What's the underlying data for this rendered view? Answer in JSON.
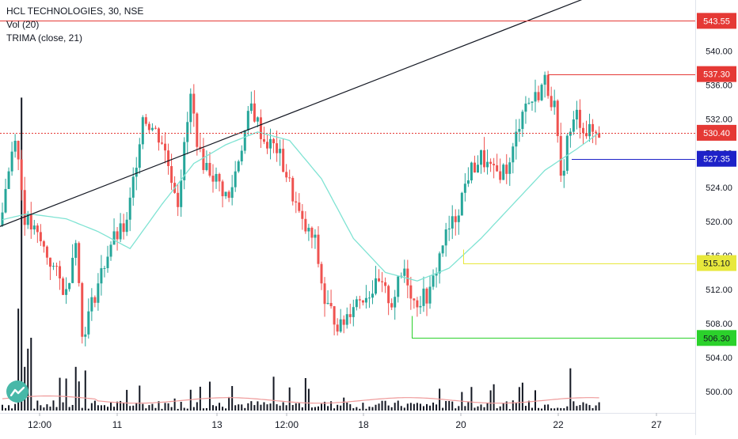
{
  "header": {
    "symbol": "HCL TECHNOLOGIES, 30, NSE",
    "indicator_1": "Vol (20)",
    "indicator_2": "TRIMA (close, 21)"
  },
  "colors": {
    "up": "#26a69a",
    "down": "#ef5350",
    "trima": "#7fe3d3",
    "trendline": "#131722",
    "volume": "#131722",
    "level_543": "#e53935",
    "level_537": "#e53935",
    "level_530": "#e53935",
    "level_527": "#1e22c8",
    "level_515": "#e8e83c",
    "level_506": "#2bd12b"
  },
  "chart_data": {
    "type": "candlestick",
    "price_axis": {
      "ylim": [
        497.5,
        546
      ],
      "ticks": [
        500,
        504,
        508,
        512,
        516,
        520,
        524,
        528,
        532,
        536,
        540
      ],
      "tick_labels": [
        "500.00",
        "504.00",
        "508.00",
        "512.00",
        "516.00",
        "520.00",
        "524.00",
        "528.00",
        "532.00",
        "536.00",
        "540.00"
      ]
    },
    "time_axis": {
      "tick_labels": [
        "12:00",
        "11",
        "13",
        "12:00",
        "18",
        "20",
        "22",
        "27"
      ]
    },
    "price_levels": [
      {
        "label": "543.55",
        "value": 543.55,
        "style": "solid"
      },
      {
        "label": "537.30",
        "value": 537.3,
        "style": "solid"
      },
      {
        "label": "530.40",
        "value": 530.4,
        "style": "dotted"
      },
      {
        "label": "527.35",
        "value": 527.35,
        "style": "solid"
      },
      {
        "label": "515.10",
        "value": 515.1,
        "style": "solid"
      },
      {
        "label": "506.30",
        "value": 506.3,
        "style": "solid"
      }
    ],
    "trend_line": {
      "start_price": 519.4,
      "end_price": 549.5
    },
    "anchors": [
      {
        "i": 0,
        "p": 519.5
      },
      {
        "i": 5,
        "p": 530.5
      },
      {
        "i": 8,
        "p": 520.5
      },
      {
        "i": 13,
        "p": 517.5
      },
      {
        "i": 17,
        "p": 514.5
      },
      {
        "i": 21,
        "p": 511.5
      },
      {
        "i": 24,
        "p": 518.5
      },
      {
        "i": 26,
        "p": 506.5
      },
      {
        "i": 30,
        "p": 511.5
      },
      {
        "i": 35,
        "p": 517.5
      },
      {
        "i": 40,
        "p": 519.5
      },
      {
        "i": 45,
        "p": 532.5
      },
      {
        "i": 51,
        "p": 529.5
      },
      {
        "i": 56,
        "p": 522.5
      },
      {
        "i": 60,
        "p": 534.5
      },
      {
        "i": 63,
        "p": 527.5
      },
      {
        "i": 67,
        "p": 525.5
      },
      {
        "i": 72,
        "p": 522.5
      },
      {
        "i": 75,
        "p": 527.5
      },
      {
        "i": 79,
        "p": 533.5
      },
      {
        "i": 83,
        "p": 529.5
      },
      {
        "i": 87,
        "p": 528.5
      },
      {
        "i": 90,
        "p": 525.5
      },
      {
        "i": 95,
        "p": 519.5
      },
      {
        "i": 99,
        "p": 517.5
      },
      {
        "i": 102,
        "p": 510.5
      },
      {
        "i": 107,
        "p": 507.5
      },
      {
        "i": 111,
        "p": 510.5
      },
      {
        "i": 115,
        "p": 511.5
      },
      {
        "i": 119,
        "p": 512.5
      },
      {
        "i": 123,
        "p": 510.5
      },
      {
        "i": 127,
        "p": 514.5
      },
      {
        "i": 130,
        "p": 510.5
      },
      {
        "i": 135,
        "p": 511.5
      },
      {
        "i": 139,
        "p": 517.5
      },
      {
        "i": 143,
        "p": 520.5
      },
      {
        "i": 147,
        "p": 525.5
      },
      {
        "i": 151,
        "p": 527.5
      },
      {
        "i": 155,
        "p": 525.5
      },
      {
        "i": 160,
        "p": 526.5
      },
      {
        "i": 164,
        "p": 533.5
      },
      {
        "i": 168,
        "p": 534.5
      },
      {
        "i": 171,
        "p": 536.5
      },
      {
        "i": 174,
        "p": 533.5
      },
      {
        "i": 176,
        "p": 524.5
      },
      {
        "i": 178,
        "p": 529.5
      },
      {
        "i": 181,
        "p": 532.5
      },
      {
        "i": 184,
        "p": 530.5
      },
      {
        "i": 187,
        "p": 530.4
      }
    ],
    "trima_anchors": [
      {
        "i": 0,
        "p": 520.2
      },
      {
        "i": 8,
        "p": 520.9
      },
      {
        "i": 20,
        "p": 520.3
      },
      {
        "i": 30,
        "p": 518.8
      },
      {
        "i": 40,
        "p": 516.8
      },
      {
        "i": 50,
        "p": 522.0
      },
      {
        "i": 60,
        "p": 526.8
      },
      {
        "i": 70,
        "p": 529.0
      },
      {
        "i": 80,
        "p": 530.5
      },
      {
        "i": 90,
        "p": 529.5
      },
      {
        "i": 100,
        "p": 525.0
      },
      {
        "i": 110,
        "p": 518.0
      },
      {
        "i": 120,
        "p": 514.0
      },
      {
        "i": 130,
        "p": 513.0
      },
      {
        "i": 140,
        "p": 514.5
      },
      {
        "i": 150,
        "p": 518.0
      },
      {
        "i": 160,
        "p": 522.0
      },
      {
        "i": 170,
        "p": 526.0
      },
      {
        "i": 180,
        "p": 528.5
      },
      {
        "i": 187,
        "p": 530.4
      }
    ],
    "count": 188
  }
}
